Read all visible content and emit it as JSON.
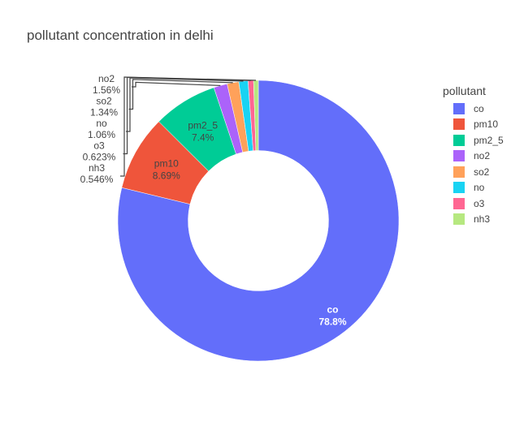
{
  "chart_data": {
    "type": "pie",
    "title": "pollutant concentration in delhi",
    "hole": 0.5,
    "legend_title": "pollutant",
    "legend_position": "right",
    "slices": [
      {
        "label": "co",
        "value": 78.8,
        "text": "78.8%",
        "color": "#636efa"
      },
      {
        "label": "pm10",
        "value": 8.69,
        "text": "8.69%",
        "color": "#ef553b"
      },
      {
        "label": "pm2_5",
        "value": 7.4,
        "text": "7.4%",
        "color": "#00cc96"
      },
      {
        "label": "no2",
        "value": 1.56,
        "text": "1.56%",
        "color": "#ab63fa"
      },
      {
        "label": "so2",
        "value": 1.34,
        "text": "1.34%",
        "color": "#ffa15a"
      },
      {
        "label": "no",
        "value": 1.06,
        "text": "1.06%",
        "color": "#19d3f3"
      },
      {
        "label": "o3",
        "value": 0.623,
        "text": "0.623%",
        "color": "#ff6692"
      },
      {
        "label": "nh3",
        "value": 0.546,
        "text": "0.546%",
        "color": "#b6e880"
      }
    ]
  }
}
